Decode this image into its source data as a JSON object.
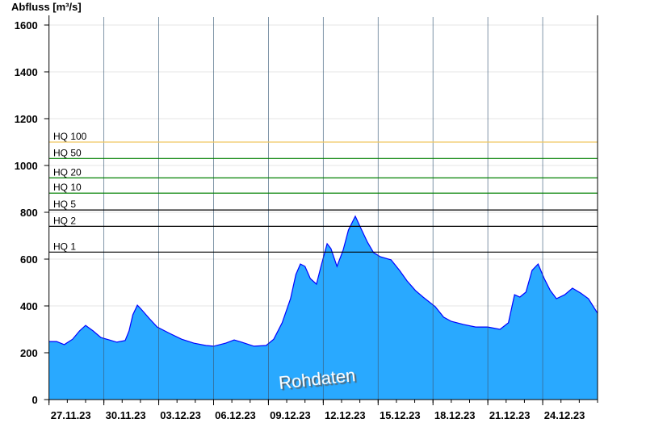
{
  "chart_data": {
    "type": "area",
    "ylabel": "Abfluss [m³/s]",
    "ylim": [
      0,
      1600
    ],
    "yticks": [
      0,
      200,
      400,
      600,
      800,
      1000,
      1200,
      1400,
      1600
    ],
    "xlim": [
      "2023-11-27T00:00",
      "2023-12-27T00:00"
    ],
    "xticks": [
      "27.11.23",
      "30.11.23",
      "03.12.23",
      "06.12.23",
      "09.12.23",
      "12.12.23",
      "15.12.23",
      "18.12.23",
      "21.12.23",
      "24.12.23"
    ],
    "xtick_dates": [
      "2023-11-27",
      "2023-11-30",
      "2023-12-03",
      "2023-12-06",
      "2023-12-09",
      "2023-12-12",
      "2023-12-15",
      "2023-12-18",
      "2023-12-21",
      "2023-12-24"
    ],
    "grid": true,
    "fill_color": "#29a9ff",
    "line_color": "#0000ff",
    "annotation": "Rohdaten",
    "thresholds": [
      {
        "label": "HQ 100",
        "value": 1100,
        "color": "#f0c860"
      },
      {
        "label": "HQ 50",
        "value": 1030,
        "color": "#008000"
      },
      {
        "label": "HQ 20",
        "value": 947,
        "color": "#008000"
      },
      {
        "label": "HQ 10",
        "value": 882,
        "color": "#008000"
      },
      {
        "label": "HQ 5",
        "value": 810,
        "color": "#000000"
      },
      {
        "label": "HQ 2",
        "value": 740,
        "color": "#000000"
      },
      {
        "label": "HQ 1",
        "value": 630,
        "color": "#000000"
      }
    ],
    "series": [
      {
        "points": [
          [
            "2023-11-27T00:00",
            248
          ],
          [
            "2023-11-27T10:00",
            248
          ],
          [
            "2023-11-27T20:00",
            235
          ],
          [
            "2023-11-28T07:00",
            258
          ],
          [
            "2023-11-28T16:00",
            293
          ],
          [
            "2023-11-29T00:00",
            317
          ],
          [
            "2023-11-29T10:00",
            293
          ],
          [
            "2023-11-29T20:00",
            265
          ],
          [
            "2023-11-30T07:00",
            255
          ],
          [
            "2023-11-30T17:00",
            245
          ],
          [
            "2023-12-01T04:00",
            252
          ],
          [
            "2023-12-01T09:00",
            293
          ],
          [
            "2023-12-01T14:00",
            362
          ],
          [
            "2023-12-01T20:00",
            403
          ],
          [
            "2023-12-02T01:00",
            386
          ],
          [
            "2023-12-02T12:00",
            345
          ],
          [
            "2023-12-02T22:00",
            310
          ],
          [
            "2023-12-03T14:00",
            283
          ],
          [
            "2023-12-04T06:00",
            258
          ],
          [
            "2023-12-04T22:00",
            241
          ],
          [
            "2023-12-05T14:00",
            231
          ],
          [
            "2023-12-06T00:00",
            228
          ],
          [
            "2023-12-06T16:00",
            241
          ],
          [
            "2023-12-07T03:00",
            255
          ],
          [
            "2023-12-07T13:00",
            245
          ],
          [
            "2023-12-08T05:00",
            228
          ],
          [
            "2023-12-08T21:00",
            231
          ],
          [
            "2023-12-09T07:00",
            258
          ],
          [
            "2023-12-09T18:00",
            328
          ],
          [
            "2023-12-10T05:00",
            431
          ],
          [
            "2023-12-10T12:00",
            534
          ],
          [
            "2023-12-10T18:00",
            579
          ],
          [
            "2023-12-11T00:00",
            569
          ],
          [
            "2023-12-11T07:00",
            517
          ],
          [
            "2023-12-11T15:00",
            493
          ],
          [
            "2023-12-11T21:00",
            569
          ],
          [
            "2023-12-12T05:00",
            666
          ],
          [
            "2023-12-12T10:00",
            645
          ],
          [
            "2023-12-12T18:00",
            569
          ],
          [
            "2023-12-13T02:00",
            638
          ],
          [
            "2023-12-13T09:00",
            724
          ],
          [
            "2023-12-13T18:00",
            783
          ],
          [
            "2023-12-14T01:00",
            734
          ],
          [
            "2023-12-14T10:00",
            672
          ],
          [
            "2023-12-14T18:00",
            628
          ],
          [
            "2023-12-15T03:00",
            610
          ],
          [
            "2023-12-15T17:00",
            597
          ],
          [
            "2023-12-16T04:00",
            552
          ],
          [
            "2023-12-16T14:00",
            507
          ],
          [
            "2023-12-17T01:00",
            466
          ],
          [
            "2023-12-17T11:00",
            438
          ],
          [
            "2023-12-18T03:00",
            397
          ],
          [
            "2023-12-18T14:00",
            352
          ],
          [
            "2023-12-19T00:00",
            334
          ],
          [
            "2023-12-19T16:00",
            321
          ],
          [
            "2023-12-20T08:00",
            310
          ],
          [
            "2023-12-21T00:00",
            310
          ],
          [
            "2023-12-21T16:00",
            300
          ],
          [
            "2023-12-22T03:00",
            328
          ],
          [
            "2023-12-22T11:00",
            448
          ],
          [
            "2023-12-22T18:00",
            438
          ],
          [
            "2023-12-23T02:00",
            459
          ],
          [
            "2023-12-23T10:00",
            552
          ],
          [
            "2023-12-23T18:00",
            579
          ],
          [
            "2023-12-24T02:00",
            517
          ],
          [
            "2023-12-24T10:00",
            466
          ],
          [
            "2023-12-24T18:00",
            431
          ],
          [
            "2023-12-25T05:00",
            448
          ],
          [
            "2023-12-25T15:00",
            476
          ],
          [
            "2023-12-26T02:00",
            455
          ],
          [
            "2023-12-26T12:00",
            431
          ],
          [
            "2023-12-27T00:00",
            369
          ]
        ]
      }
    ]
  }
}
